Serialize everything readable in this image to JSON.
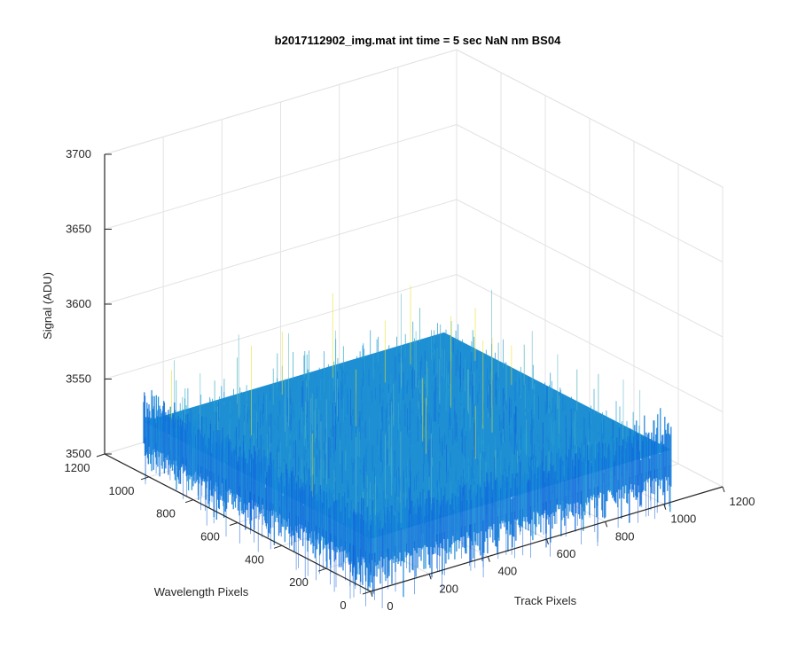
{
  "chart_data": {
    "type": "surface",
    "title": "b2017112902_img.mat int time = 5 sec  NaN nm BS04",
    "xlabel": "Track Pixels",
    "ylabel": "Wavelength Pixels",
    "zlabel": "Signal (ADU)",
    "xlim": [
      0,
      1200
    ],
    "ylim": [
      0,
      1200
    ],
    "zlim": [
      3500,
      3700
    ],
    "x_ticks": [
      "0",
      "200",
      "400",
      "600",
      "800",
      "1000",
      "1200"
    ],
    "y_ticks": [
      "0",
      "200",
      "400",
      "600",
      "800",
      "1000",
      "1200"
    ],
    "z_ticks": [
      "3500",
      "3550",
      "3600",
      "3650",
      "3700"
    ],
    "data_extent": {
      "x": [
        0,
        1024
      ],
      "y": [
        0,
        1024
      ]
    },
    "signal_level": 3535,
    "signal_range": [
      3505,
      3650
    ],
    "grid": true,
    "colormap": "parula",
    "colors": {
      "low": "#0f5fdc",
      "mid": "#1a9ad6",
      "high": "#e6e21f",
      "grid": "#e3e3e3",
      "axis": "#262626"
    }
  }
}
